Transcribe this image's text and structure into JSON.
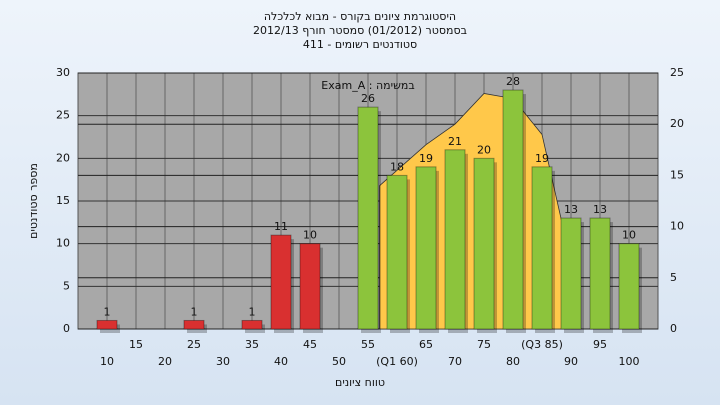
{
  "chart_data": {
    "type": "bar",
    "title": "היסטוגרמת ציונים בקורס - מבוא לכלכלה",
    "subtitle": "בסמסטר  (01/2012)  סמסטר חורף 2012/13",
    "subtitle2": "סטודנטים רשומים - 411",
    "annotation": "במשימה : Exam_A",
    "xlabel": "טווח ציונים",
    "ylabel": "מספר סטודנטים",
    "x": [
      10,
      15,
      20,
      25,
      30,
      35,
      40,
      45,
      50,
      55,
      60,
      65,
      70,
      75,
      80,
      85,
      90,
      95,
      100
    ],
    "values": [
      1,
      0,
      0,
      1,
      0,
      1,
      11,
      10,
      0,
      26,
      18,
      19,
      21,
      20,
      28,
      19,
      13,
      13,
      10
    ],
    "colors": [
      "#d93030",
      "#d93030",
      "#d93030",
      "#d93030",
      "#d93030",
      "#d93030",
      "#d93030",
      "#d93030",
      "#d93030",
      "#8cc43c",
      "#8cc43c",
      "#8cc43c",
      "#8cc43c",
      "#8cc43c",
      "#8cc43c",
      "#8cc43c",
      "#8cc43c",
      "#8cc43c",
      "#8cc43c"
    ],
    "area": {
      "axis": "y2",
      "color": "#ffc84a",
      "x": [
        57,
        65,
        70,
        75,
        80,
        85,
        90
      ],
      "values": [
        14,
        18,
        20,
        23,
        22.5,
        19,
        6.5
      ]
    },
    "xlim": [
      5,
      105
    ],
    "xticks": [
      10,
      15,
      20,
      25,
      30,
      35,
      40,
      45,
      50,
      55,
      {
        "value": 60,
        "label": "(Q1 60)"
      },
      65,
      70,
      75,
      80,
      {
        "value": 85,
        "label": "(Q3 85)"
      },
      90,
      95,
      100
    ],
    "ylim": [
      0,
      30
    ],
    "yticks": [
      0,
      5,
      10,
      15,
      20,
      25,
      30
    ],
    "y2lim": [
      0,
      25
    ],
    "y2ticks": [
      0,
      5,
      10,
      15,
      20,
      25
    ],
    "grid": true
  }
}
